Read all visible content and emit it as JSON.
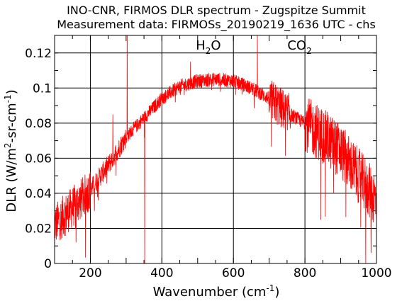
{
  "chart_data": {
    "type": "line",
    "title": "INO-CNR, FIRMOS DLR spectrum - Zugspitze Summit",
    "subtitle": "Measurement data: FIRMOSs_20190219_1636 UTC - chs",
    "xlabel": {
      "main": "Wavenumber (cm",
      "sup": "-1",
      "close": ")"
    },
    "ylabel": {
      "p1": "DLR (W/m",
      "sup1": "2",
      "p2": "-sr-cm",
      "sup2": "-1",
      "p3": ")"
    },
    "xlim": [
      100,
      1000
    ],
    "ylim": [
      0,
      0.13
    ],
    "xticks": [
      {
        "value": 200,
        "label": "200"
      },
      {
        "value": 400,
        "label": "400"
      },
      {
        "value": 600,
        "label": "600"
      },
      {
        "value": 800,
        "label": "800"
      },
      {
        "value": 1000,
        "label": "1000"
      }
    ],
    "yticks": [
      {
        "value": 0,
        "label": "0"
      },
      {
        "value": 0.02,
        "label": "0.02"
      },
      {
        "value": 0.04,
        "label": "0.04"
      },
      {
        "value": 0.06,
        "label": "0.06"
      },
      {
        "value": 0.08,
        "label": "0.08"
      },
      {
        "value": 0.1,
        "label": "0.1"
      },
      {
        "value": 0.12,
        "label": "0.12"
      }
    ],
    "grid": true,
    "annotations": [
      {
        "x": 530,
        "y": 0.122,
        "base": "H",
        "sub": "2",
        "tail": "O"
      },
      {
        "x": 785,
        "y": 0.122,
        "base": "CO",
        "sub": "2",
        "tail": ""
      }
    ],
    "series": [
      {
        "color": "#ff0000",
        "envelope": {
          "x": [
            100,
            150,
            200,
            250,
            300,
            350,
            400,
            450,
            500,
            550,
            600,
            650,
            700,
            750,
            800,
            850,
            900,
            950,
            1000
          ],
          "y": [
            0.022,
            0.032,
            0.042,
            0.056,
            0.072,
            0.083,
            0.094,
            0.101,
            0.104,
            0.105,
            0.104,
            0.1,
            0.094,
            0.086,
            0.08,
            0.073,
            0.064,
            0.05,
            0.036
          ]
        },
        "spikes": [
          {
            "x": 303,
            "y": 0.131
          },
          {
            "x": 352,
            "y": -0.002
          },
          {
            "x": 263,
            "y": 0.085
          },
          {
            "x": 667,
            "y": 0.132
          },
          {
            "x": 720,
            "y": 0.094
          },
          {
            "x": 160,
            "y": 0.012
          },
          {
            "x": 970,
            "y": -0.002
          },
          {
            "x": 985,
            "y": 0.006
          },
          {
            "x": 480,
            "y": 0.115
          },
          {
            "x": 880,
            "y": 0.04
          },
          {
            "x": 935,
            "y": 0.045
          }
        ]
      }
    ]
  }
}
